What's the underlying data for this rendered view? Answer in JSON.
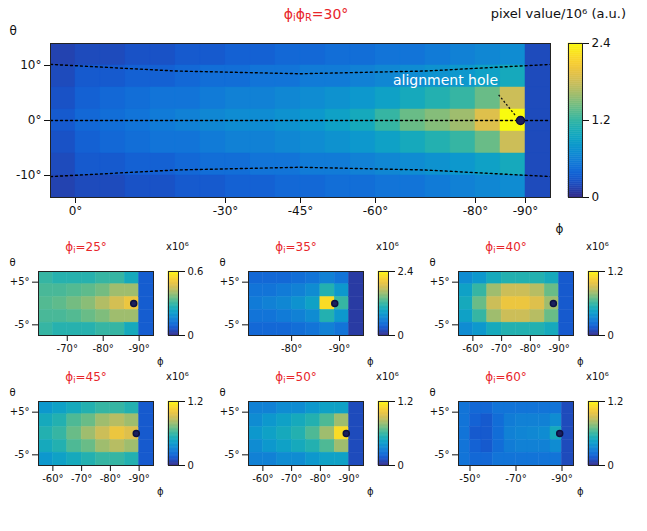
{
  "chart_data": [
    {
      "type": "heatmap",
      "title": "ϕiϕR=30°",
      "x_label": "ϕ",
      "y_label": "θ",
      "xlim": [
        5,
        -95
      ],
      "ylim": [
        -14,
        14
      ],
      "xticks": [
        {
          "value": 0,
          "label": "0°"
        },
        {
          "value": -30,
          "label": "-30°"
        },
        {
          "value": -45,
          "label": "-45°"
        },
        {
          "value": -60,
          "label": "-60°"
        },
        {
          "value": -80,
          "label": "-80°"
        },
        {
          "value": -90,
          "label": "-90°"
        }
      ],
      "yticks": [
        {
          "value": 10,
          "label": "10°"
        },
        {
          "value": 0,
          "label": "0°"
        },
        {
          "value": -10,
          "label": "-10°"
        }
      ],
      "phi": [
        2.5,
        -2.5,
        -7.5,
        -12.5,
        -17.5,
        -22.5,
        -27.5,
        -32.5,
        -37.5,
        -42.5,
        -47.5,
        -52.5,
        -57.5,
        -62.5,
        -67.5,
        -72.5,
        -77.5,
        -82.5,
        -87.5,
        -92.5
      ],
      "theta": [
        12,
        8,
        4,
        0,
        -4,
        -8,
        -12
      ],
      "values": [
        [
          0.15,
          0.2,
          0.2,
          0.25,
          0.25,
          0.3,
          0.3,
          0.35,
          0.35,
          0.4,
          0.4,
          0.45,
          0.45,
          0.5,
          0.5,
          0.55,
          0.6,
          0.65,
          0.7,
          0.2
        ],
        [
          0.2,
          0.3,
          0.3,
          0.35,
          0.35,
          0.4,
          0.45,
          0.45,
          0.5,
          0.5,
          0.55,
          0.55,
          0.6,
          0.65,
          0.7,
          0.75,
          0.8,
          0.9,
          1.0,
          0.2
        ],
        [
          0.25,
          0.35,
          0.4,
          0.45,
          0.5,
          0.5,
          0.55,
          0.6,
          0.6,
          0.65,
          0.7,
          0.75,
          0.8,
          0.9,
          1.0,
          1.1,
          1.2,
          1.4,
          1.8,
          0.2
        ],
        [
          0.3,
          0.4,
          0.45,
          0.5,
          0.55,
          0.6,
          0.65,
          0.7,
          0.7,
          0.75,
          0.8,
          0.9,
          1.0,
          1.2,
          1.4,
          1.5,
          1.6,
          1.9,
          2.4,
          0.2
        ],
        [
          0.25,
          0.35,
          0.4,
          0.45,
          0.5,
          0.5,
          0.55,
          0.6,
          0.6,
          0.65,
          0.7,
          0.75,
          0.8,
          0.9,
          1.0,
          1.1,
          1.2,
          1.4,
          1.8,
          0.2
        ],
        [
          0.2,
          0.3,
          0.3,
          0.35,
          0.35,
          0.4,
          0.45,
          0.45,
          0.5,
          0.5,
          0.55,
          0.55,
          0.6,
          0.65,
          0.7,
          0.75,
          0.8,
          0.9,
          1.0,
          0.2
        ],
        [
          0.15,
          0.2,
          0.2,
          0.25,
          0.25,
          0.3,
          0.3,
          0.35,
          0.35,
          0.4,
          0.4,
          0.45,
          0.45,
          0.5,
          0.5,
          0.55,
          0.6,
          0.65,
          0.7,
          0.2
        ]
      ],
      "colorbar": {
        "label": "pixel value/10⁶ (a.u.)",
        "range": [
          0,
          2.4
        ],
        "ticks": [
          0,
          1.2,
          2.4
        ]
      },
      "annotation": {
        "text": "alignment hole",
        "phi": -89,
        "theta": 0
      },
      "guides": [
        {
          "line_style": "dotted",
          "color": "black",
          "phi": [
            5,
            -20,
            -45,
            -70,
            -95
          ],
          "theta": [
            10.2,
            9,
            8.5,
            9,
            10.2
          ]
        },
        {
          "line_style": "dotted",
          "color": "black",
          "phi": [
            5,
            -20,
            -45,
            -70,
            -95
          ],
          "theta": [
            0,
            0,
            0,
            0,
            0
          ]
        },
        {
          "line_style": "dotted",
          "color": "black",
          "phi": [
            5,
            -20,
            -45,
            -70,
            -95
          ],
          "theta": [
            -10.2,
            -9,
            -8.5,
            -9,
            -10.2
          ]
        }
      ]
    },
    {
      "type": "heatmap",
      "title": "ϕi=25°",
      "x_label": "ϕ",
      "y_label": "θ",
      "xlim": [
        -62,
        -94
      ],
      "ylim": [
        -7.5,
        7.5
      ],
      "xticks": [
        {
          "value": -70,
          "label": "-70°"
        },
        {
          "value": -80,
          "label": "-80°"
        },
        {
          "value": -90,
          "label": "-90°"
        }
      ],
      "yticks": [
        {
          "value": 5,
          "label": "+5°"
        },
        {
          "value": -5,
          "label": "-5°"
        }
      ],
      "phi": [
        -64,
        -68,
        -72,
        -76,
        -80,
        -84,
        -88,
        -92
      ],
      "theta": [
        6,
        3,
        0,
        -3,
        -6
      ],
      "values": [
        [
          0.3,
          0.28,
          0.28,
          0.28,
          0.3,
          0.3,
          0.25,
          0.08
        ],
        [
          0.32,
          0.32,
          0.33,
          0.34,
          0.36,
          0.4,
          0.4,
          0.08
        ],
        [
          0.33,
          0.34,
          0.36,
          0.38,
          0.42,
          0.46,
          0.5,
          0.08
        ],
        [
          0.32,
          0.32,
          0.33,
          0.35,
          0.37,
          0.4,
          0.4,
          0.08
        ],
        [
          0.3,
          0.28,
          0.28,
          0.28,
          0.3,
          0.3,
          0.25,
          0.08
        ]
      ],
      "colorbar": {
        "label": "x10⁶",
        "range": [
          0,
          0.6
        ],
        "ticks": [
          0,
          0.6
        ]
      },
      "hole": {
        "phi": -88.5,
        "theta": 0
      }
    },
    {
      "type": "heatmap",
      "title": "ϕi=35°",
      "x_label": "ϕ",
      "y_label": "θ",
      "xlim": [
        -71,
        -95
      ],
      "ylim": [
        -7.5,
        7.5
      ],
      "xticks": [
        {
          "value": -80,
          "label": "-80°"
        },
        {
          "value": -90,
          "label": "-90°"
        }
      ],
      "yticks": [
        {
          "value": 5,
          "label": "+5°"
        },
        {
          "value": -5,
          "label": "-5°"
        }
      ],
      "phi": [
        -72.5,
        -75.5,
        -78.5,
        -81.5,
        -84.5,
        -87.5,
        -90.5,
        -93.5
      ],
      "theta": [
        6,
        3,
        0,
        -3,
        -6
      ],
      "values": [
        [
          0.4,
          0.4,
          0.4,
          0.45,
          0.5,
          0.6,
          0.5,
          0.1
        ],
        [
          0.5,
          0.5,
          0.55,
          0.6,
          0.7,
          1.1,
          0.8,
          0.1
        ],
        [
          0.55,
          0.6,
          0.65,
          0.75,
          0.9,
          2.2,
          1.2,
          0.1
        ],
        [
          0.5,
          0.5,
          0.55,
          0.6,
          0.7,
          1.1,
          0.8,
          0.1
        ],
        [
          0.4,
          0.4,
          0.4,
          0.45,
          0.5,
          0.6,
          0.5,
          0.1
        ]
      ],
      "colorbar": {
        "label": "x10⁶",
        "range": [
          0,
          2.4
        ],
        "ticks": [
          0,
          2.4
        ]
      },
      "hole": {
        "phi": -89,
        "theta": 0
      }
    },
    {
      "type": "heatmap",
      "title": "ϕi=40°",
      "x_label": "ϕ",
      "y_label": "θ",
      "xlim": [
        -55,
        -95
      ],
      "ylim": [
        -7.5,
        7.5
      ],
      "xticks": [
        {
          "value": -60,
          "label": "-60°"
        },
        {
          "value": -70,
          "label": "-70°"
        },
        {
          "value": -80,
          "label": "-80°"
        },
        {
          "value": -90,
          "label": "-90°"
        }
      ],
      "yticks": [
        {
          "value": 5,
          "label": "+5°"
        },
        {
          "value": -5,
          "label": "-5°"
        }
      ],
      "phi": [
        -57.5,
        -62.5,
        -67.5,
        -72.5,
        -77.5,
        -82.5,
        -87.5,
        -92.5
      ],
      "theta": [
        6,
        3,
        0,
        -3,
        -6
      ],
      "values": [
        [
          0.35,
          0.4,
          0.5,
          0.55,
          0.55,
          0.55,
          0.5,
          0.15
        ],
        [
          0.45,
          0.6,
          0.8,
          0.9,
          0.9,
          0.85,
          0.7,
          0.15
        ],
        [
          0.5,
          0.7,
          0.9,
          1.0,
          1.0,
          0.95,
          0.8,
          0.15
        ],
        [
          0.45,
          0.6,
          0.8,
          0.9,
          0.9,
          0.85,
          0.7,
          0.15
        ],
        [
          0.35,
          0.4,
          0.5,
          0.55,
          0.55,
          0.55,
          0.5,
          0.15
        ]
      ],
      "colorbar": {
        "label": "x10⁶",
        "range": [
          0,
          1.2
        ],
        "ticks": [
          0,
          1.2
        ]
      },
      "hole": {
        "phi": -88,
        "theta": 0
      }
    },
    {
      "type": "heatmap",
      "title": "ϕi=45°",
      "x_label": "ϕ",
      "y_label": "θ",
      "xlim": [
        -55,
        -95
      ],
      "ylim": [
        -7.5,
        7.5
      ],
      "xticks": [
        {
          "value": -60,
          "label": "-60°"
        },
        {
          "value": -70,
          "label": "-70°"
        },
        {
          "value": -80,
          "label": "-80°"
        },
        {
          "value": -90,
          "label": "-90°"
        }
      ],
      "yticks": [
        {
          "value": 5,
          "label": "+5°"
        },
        {
          "value": -5,
          "label": "-5°"
        }
      ],
      "phi": [
        -57.5,
        -62.5,
        -67.5,
        -72.5,
        -77.5,
        -82.5,
        -87.5,
        -92.5
      ],
      "theta": [
        6,
        3,
        0,
        -3,
        -6
      ],
      "values": [
        [
          0.4,
          0.45,
          0.5,
          0.55,
          0.6,
          0.6,
          0.55,
          0.15
        ],
        [
          0.5,
          0.55,
          0.65,
          0.7,
          0.8,
          0.85,
          0.8,
          0.15
        ],
        [
          0.55,
          0.6,
          0.7,
          0.8,
          0.9,
          1.0,
          0.95,
          0.15
        ],
        [
          0.5,
          0.55,
          0.65,
          0.7,
          0.8,
          0.85,
          0.8,
          0.15
        ],
        [
          0.4,
          0.45,
          0.5,
          0.55,
          0.6,
          0.6,
          0.55,
          0.15
        ]
      ],
      "colorbar": {
        "label": "x10⁶",
        "range": [
          0,
          1.2
        ],
        "ticks": [
          0,
          1.2
        ]
      },
      "hole": {
        "phi": -89,
        "theta": 0
      }
    },
    {
      "type": "heatmap",
      "title": "ϕi=50°",
      "x_label": "ϕ",
      "y_label": "θ",
      "xlim": [
        -55,
        -95
      ],
      "ylim": [
        -7.5,
        7.5
      ],
      "xticks": [
        {
          "value": -60,
          "label": "-60°"
        },
        {
          "value": -70,
          "label": "-70°"
        },
        {
          "value": -80,
          "label": "-80°"
        },
        {
          "value": -90,
          "label": "-90°"
        }
      ],
      "yticks": [
        {
          "value": 5,
          "label": "+5°"
        },
        {
          "value": -5,
          "label": "-5°"
        }
      ],
      "phi": [
        -57.5,
        -62.5,
        -67.5,
        -72.5,
        -77.5,
        -82.5,
        -87.5,
        -92.5
      ],
      "theta": [
        6,
        3,
        0,
        -3,
        -6
      ],
      "values": [
        [
          0.3,
          0.3,
          0.35,
          0.35,
          0.4,
          0.45,
          0.45,
          0.1
        ],
        [
          0.35,
          0.4,
          0.45,
          0.5,
          0.55,
          0.65,
          0.8,
          0.1
        ],
        [
          0.4,
          0.45,
          0.5,
          0.55,
          0.65,
          0.8,
          1.1,
          0.1
        ],
        [
          0.35,
          0.4,
          0.45,
          0.5,
          0.55,
          0.65,
          0.8,
          0.1
        ],
        [
          0.3,
          0.3,
          0.35,
          0.35,
          0.4,
          0.45,
          0.45,
          0.1
        ]
      ],
      "colorbar": {
        "label": "x10⁶",
        "range": [
          0,
          1.2
        ],
        "ticks": [
          0,
          1.2
        ]
      },
      "hole": {
        "phi": -89,
        "theta": 0
      }
    },
    {
      "type": "heatmap",
      "title": "ϕi=60°",
      "x_label": "ϕ",
      "y_label": "θ",
      "xlim": [
        -45,
        -95
      ],
      "ylim": [
        -7.5,
        7.5
      ],
      "xticks": [
        {
          "value": -50,
          "label": "-50°"
        },
        {
          "value": -70,
          "label": "-70°"
        },
        {
          "value": -90,
          "label": "-90°"
        }
      ],
      "yticks": [
        {
          "value": 5,
          "label": "+5°"
        },
        {
          "value": -5,
          "label": "-5°"
        }
      ],
      "phi": [
        -47.5,
        -52.5,
        -57.5,
        -62.5,
        -67.5,
        -72.5,
        -77.5,
        -82.5,
        -87.5,
        -92.5
      ],
      "theta": [
        6,
        3,
        0,
        -3,
        -6
      ],
      "values": [
        [
          0.25,
          0.2,
          0.2,
          0.25,
          0.25,
          0.25,
          0.25,
          0.25,
          0.25,
          0.1
        ],
        [
          0.25,
          0.18,
          0.15,
          0.22,
          0.28,
          0.3,
          0.3,
          0.3,
          0.35,
          0.1
        ],
        [
          0.25,
          0.15,
          0.15,
          0.22,
          0.3,
          0.32,
          0.33,
          0.35,
          0.5,
          0.1
        ],
        [
          0.25,
          0.18,
          0.15,
          0.22,
          0.28,
          0.3,
          0.3,
          0.3,
          0.35,
          0.1
        ],
        [
          0.25,
          0.2,
          0.2,
          0.25,
          0.25,
          0.25,
          0.25,
          0.25,
          0.25,
          0.1
        ]
      ],
      "colorbar": {
        "label": "x10⁶",
        "range": [
          0,
          1.2
        ],
        "ticks": [
          0,
          1.2
        ]
      },
      "hole": {
        "phi": -89,
        "theta": 0
      }
    }
  ]
}
